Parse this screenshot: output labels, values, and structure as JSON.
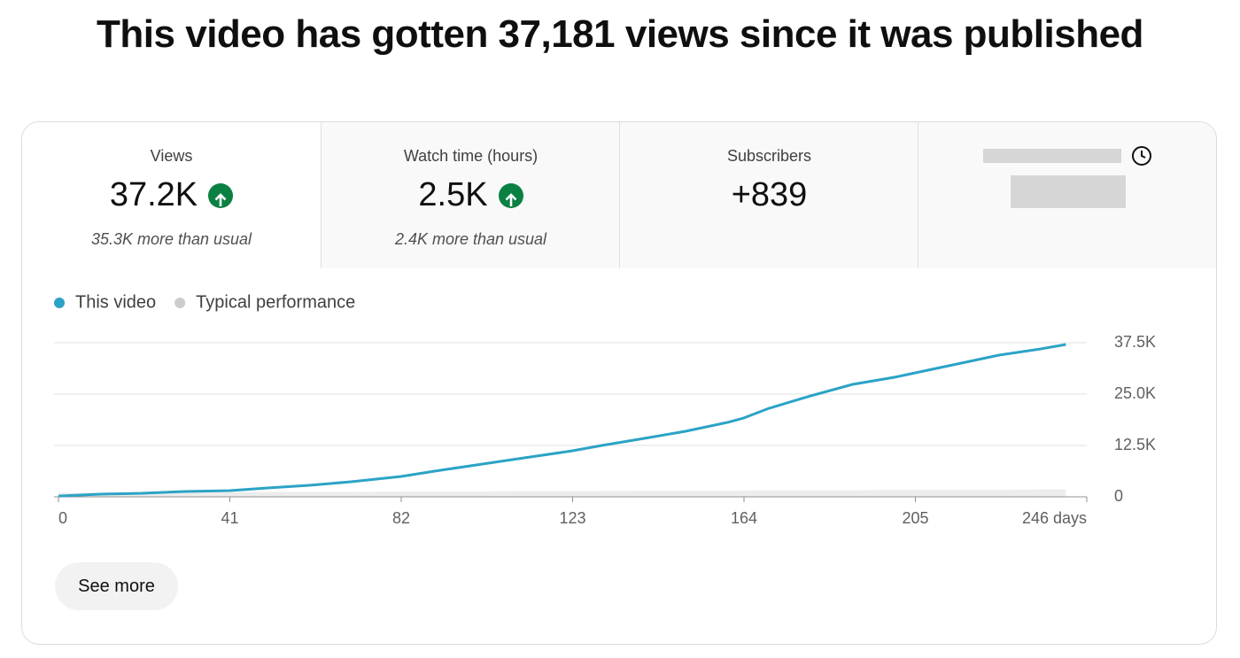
{
  "header": {
    "title": "This video has gotten 37,181 views since it was published"
  },
  "cards": [
    {
      "label": "Views",
      "value": "37.2K",
      "note": "35.3K more than usual"
    },
    {
      "label": "Watch time (hours)",
      "value": "2.5K",
      "note": "2.4K more than usual"
    },
    {
      "label": "Subscribers",
      "value": "+839"
    }
  ],
  "chart_data": {
    "type": "line",
    "x": [
      0,
      10,
      20,
      30,
      41,
      50,
      60,
      70,
      82,
      90,
      100,
      110,
      123,
      130,
      140,
      150,
      160,
      164,
      170,
      180,
      190,
      200,
      205,
      215,
      225,
      235,
      241
    ],
    "series": [
      {
        "name": "This video",
        "color": "#2ba3c6",
        "values": [
          200,
          650,
          860,
          1300,
          1500,
          2150,
          2800,
          3660,
          4960,
          6250,
          7760,
          9270,
          11200,
          12500,
          14200,
          15950,
          18100,
          19200,
          21550,
          24570,
          27370,
          29100,
          30170,
          32330,
          34480,
          36000,
          37070
        ]
      },
      {
        "name": "Typical performance",
        "color": "#cccccc",
        "values": [
          1000,
          1000,
          1100,
          1100,
          1100,
          1200,
          1200,
          1200,
          1300,
          1300,
          1300,
          1400,
          1400,
          1400,
          1500,
          1500,
          1500,
          1500,
          1600,
          1600,
          1600,
          1700,
          1700,
          1700,
          1700,
          1800,
          1800
        ]
      }
    ],
    "xlim": [
      0,
      246
    ],
    "xticks": [
      0,
      41,
      82,
      123,
      164,
      205,
      {
        "value": 246,
        "label": "246 days"
      }
    ],
    "ylim": [
      0,
      37500
    ],
    "yticks": [
      0,
      {
        "value": 12500,
        "label": "12.5K"
      },
      {
        "value": 25000,
        "label": "25.0K"
      },
      {
        "value": 37500,
        "label": "37.5K"
      }
    ],
    "grid": true
  },
  "button": {
    "label": "See more"
  }
}
